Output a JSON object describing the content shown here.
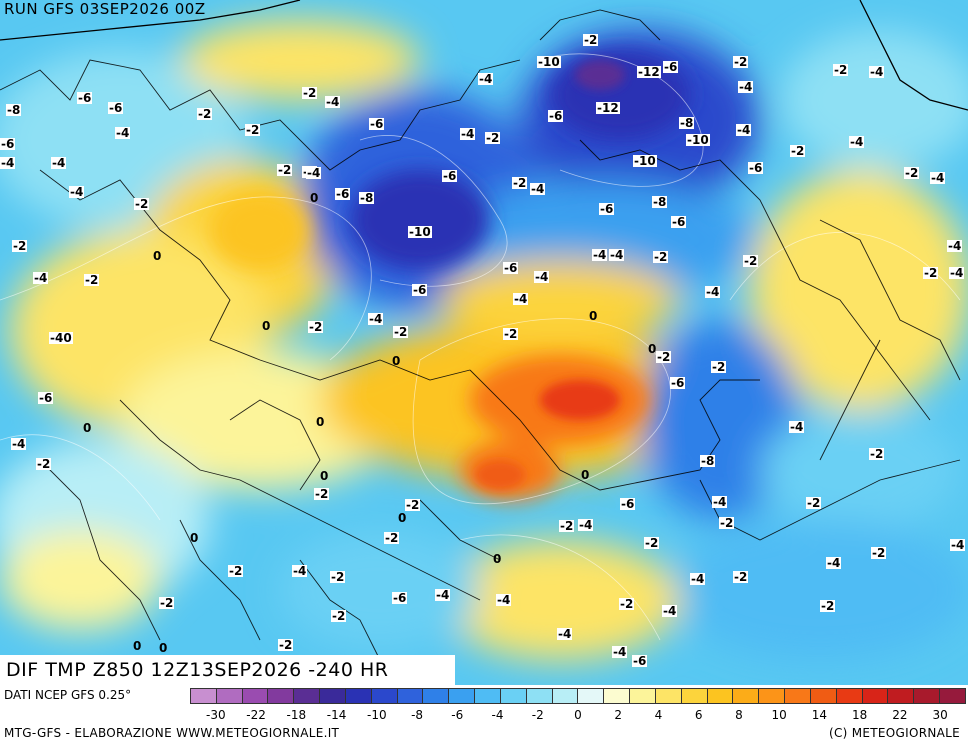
{
  "run_title": "RUN GFS 03SEP2026 00Z",
  "field_title": "DIF TMP Z850 12Z13SEP2026 -240 HR",
  "source_label": "DATI NCEP GFS 0.25°",
  "credit_left": "MTG-GFS - ELABORAZIONE WWW.METEOGIORNALE.IT",
  "credit_right": "(C) METEOGIORNALE",
  "colors": {
    "ocean_base": "#58c8f2",
    "scale": [
      "#c88fd0",
      "#b06cc0",
      "#9a4cb0",
      "#823a9e",
      "#5a2e94",
      "#3a2a9a",
      "#2a32b4",
      "#2b48cc",
      "#2f62dc",
      "#2f80e8",
      "#3aa0f0",
      "#4fbcf4",
      "#6ad0f4",
      "#8ee0f4",
      "#b8eef6",
      "#e4f8f8",
      "#fcfcd0",
      "#fcf49a",
      "#fde466",
      "#fcd43c",
      "#fcc420",
      "#fcac18",
      "#fc9418",
      "#f87818",
      "#f05c14",
      "#e83a14",
      "#d82418",
      "#c01c20",
      "#a81a2c",
      "#961a3c"
    ]
  },
  "scale_ticks": [
    "-30",
    "-22",
    "-18",
    "-14",
    "-10",
    "-8",
    "-6",
    "-4",
    "-2",
    "0",
    "2",
    "4",
    "6",
    "8",
    "10",
    "14",
    "18",
    "22",
    "30"
  ],
  "map_labels": [
    "-2",
    "-10",
    "-12",
    "-6",
    "-2",
    "-4",
    "-4",
    "-2",
    "-4",
    "-2",
    "-4",
    "-6",
    "-6",
    "-12",
    "-6",
    "-8",
    "-8",
    "-10",
    "-4",
    "-2",
    "-4",
    "-6",
    "-4",
    "-2",
    "-6",
    "-2",
    "-4",
    "-6",
    "-10",
    "-2",
    "-4",
    "-4",
    "-4",
    "-6",
    "-8",
    "-8",
    "-6",
    "-6",
    "-2",
    "-2",
    "-4",
    "-4",
    "-2",
    "-10",
    "-6",
    "-4",
    "-4",
    "-6",
    "-2",
    "-4",
    "-4",
    "-2",
    "-4",
    "-2",
    "-2",
    "-4",
    "-2",
    "-4",
    "-2",
    "-4",
    "-40",
    "-4",
    "-2",
    "-2",
    "-6",
    "-6",
    "-4",
    "-2",
    "-2",
    "-8",
    "-6",
    "-2",
    "-4",
    "-4",
    "-6",
    "-4",
    "-2",
    "-2",
    "-2",
    "-2",
    "-6",
    "-4",
    "-2",
    "-2",
    "-2",
    "-4",
    "-2",
    "-2",
    "-2",
    "-4",
    "-2",
    "-4",
    "-4",
    "-2",
    "-2",
    "-4",
    "-2",
    "-6",
    "-2",
    "-4",
    "-4",
    "-4",
    "-4",
    "-6",
    "-2",
    "-2",
    "-2",
    "-4",
    "0",
    "0",
    "0",
    "0",
    "0",
    "0",
    "0",
    "0",
    "0",
    "0",
    "0",
    "0",
    "0",
    "0",
    "0"
  ]
}
